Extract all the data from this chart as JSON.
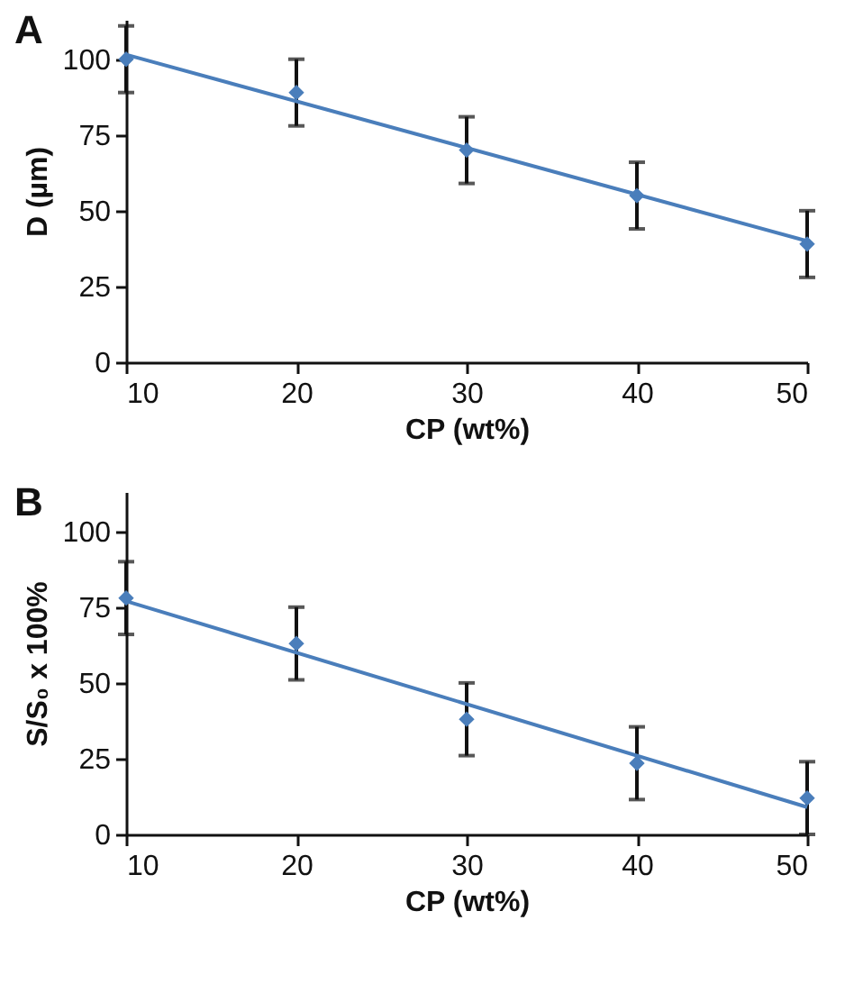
{
  "chart_data": [
    {
      "type": "scatter",
      "title": "A",
      "xlabel": "CP (wt%)",
      "ylabel": "D (µm)",
      "xlim": [
        10,
        50
      ],
      "xticks": [
        10,
        20,
        30,
        40,
        50
      ],
      "ylim": [
        0,
        113
      ],
      "yticks": [
        0,
        25,
        50,
        75,
        100
      ],
      "series": [
        {
          "marker": "diamond",
          "color": "#4a7ebb",
          "x": [
            10,
            20,
            30,
            40,
            50
          ],
          "values": [
            100,
            89,
            70,
            55,
            39
          ],
          "errors": [
            11,
            11,
            11,
            11,
            11
          ]
        },
        {
          "type": "line",
          "color": "#4a7ebb",
          "x": [
            10,
            50
          ],
          "values": [
            101.5,
            40
          ]
        }
      ]
    },
    {
      "type": "scatter",
      "title": "B",
      "xlabel": "CP (wt%)",
      "ylabel": "S/S₀ x 100%",
      "xlim": [
        10,
        50
      ],
      "xticks": [
        10,
        20,
        30,
        40,
        50
      ],
      "ylim": [
        0,
        113
      ],
      "yticks": [
        0,
        25,
        50,
        75,
        100
      ],
      "series": [
        {
          "marker": "diamond",
          "color": "#4a7ebb",
          "x": [
            10,
            20,
            30,
            40,
            50
          ],
          "values": [
            78,
            63,
            38,
            23.5,
            12
          ],
          "errors": [
            12,
            12,
            12,
            12,
            12
          ]
        },
        {
          "type": "line",
          "color": "#4a7ebb",
          "x": [
            10,
            50
          ],
          "values": [
            77,
            9
          ]
        }
      ]
    }
  ]
}
